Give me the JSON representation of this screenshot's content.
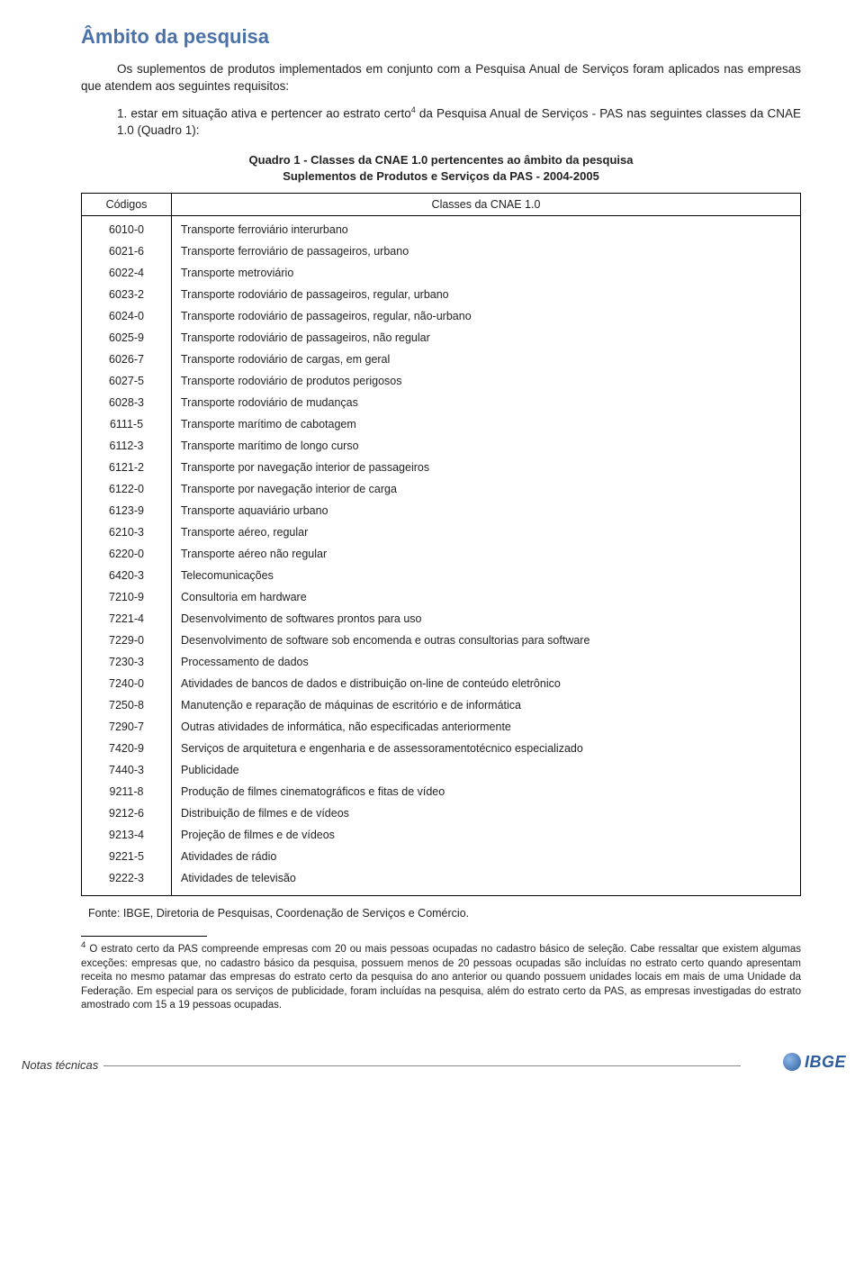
{
  "title": "Âmbito da pesquisa",
  "intro": "Os suplementos de produtos implementados em conjunto com a Pesquisa Anual de Serviços foram aplicados nas empresas que atendem aos seguintes requisitos:",
  "list_item_prefix": "1. estar em situação ativa e pertencer ao estrato certo",
  "list_item_sup": "4",
  "list_item_suffix": " da Pesquisa Anual de Serviços - PAS nas seguintes classes da CNAE 1.0 (Quadro 1):",
  "quadro_title_line1": "Quadro 1 - Classes da CNAE 1.0 pertencentes ao âmbito da pesquisa",
  "quadro_title_line2": "Suplementos de Produtos e Serviços da PAS - 2004-2005",
  "table": {
    "header_codes": "Códigos",
    "header_class": "Classes da CNAE 1.0",
    "rows": [
      {
        "code": "6010-0",
        "desc": "Transporte ferroviário interurbano"
      },
      {
        "code": "6021-6",
        "desc": "Transporte ferroviário de passageiros, urbano"
      },
      {
        "code": "6022-4",
        "desc": "Transporte metroviário"
      },
      {
        "code": "6023-2",
        "desc": "Transporte rodoviário de passageiros, regular, urbano"
      },
      {
        "code": "6024-0",
        "desc": "Transporte rodoviário de passageiros, regular, não-urbano"
      },
      {
        "code": "6025-9",
        "desc": "Transporte rodoviário de passageiros, não regular"
      },
      {
        "code": "6026-7",
        "desc": "Transporte rodoviário de cargas, em geral"
      },
      {
        "code": "6027-5",
        "desc": "Transporte rodoviário de produtos perigosos"
      },
      {
        "code": "6028-3",
        "desc": "Transporte rodoviário de mudanças"
      },
      {
        "code": "6111-5",
        "desc": "Transporte marítimo de cabotagem"
      },
      {
        "code": "6112-3",
        "desc": "Transporte marítimo de longo curso"
      },
      {
        "code": "6121-2",
        "desc": "Transporte por navegação interior de passageiros"
      },
      {
        "code": "6122-0",
        "desc": "Transporte por navegação interior de carga"
      },
      {
        "code": "6123-9",
        "desc": "Transporte aquaviário urbano"
      },
      {
        "code": "6210-3",
        "desc": "Transporte aéreo, regular"
      },
      {
        "code": "6220-0",
        "desc": "Transporte aéreo não regular"
      },
      {
        "code": "6420-3",
        "desc": "Telecomunicações"
      },
      {
        "code": "7210-9",
        "desc": "Consultoria em hardware"
      },
      {
        "code": "7221-4",
        "desc": "Desenvolvimento de softwares prontos para uso"
      },
      {
        "code": "7229-0",
        "desc": "Desenvolvimento de software sob encomenda e outras consultorias para software"
      },
      {
        "code": "7230-3",
        "desc": "Processamento de dados"
      },
      {
        "code": "7240-0",
        "desc": "Atividades de bancos de dados e distribuição on-line de conteúdo eletrônico"
      },
      {
        "code": "7250-8",
        "desc": "Manutenção e reparação de máquinas de escritório e de informática"
      },
      {
        "code": "7290-7",
        "desc": "Outras atividades de informática, não especificadas anteriormente"
      },
      {
        "code": "7420-9",
        "desc": "Serviços de arquitetura e engenharia e de assessoramentotécnico especializado"
      },
      {
        "code": "7440-3",
        "desc": "Publicidade"
      },
      {
        "code": "9211-8",
        "desc": "Produção de filmes cinematográficos e fitas de vídeo"
      },
      {
        "code": "9212-6",
        "desc": "Distribuição de filmes e de vídeos"
      },
      {
        "code": "9213-4",
        "desc": "Projeção de filmes e de vídeos"
      },
      {
        "code": "9221-5",
        "desc": "Atividades de rádio"
      },
      {
        "code": "9222-3",
        "desc": "Atividades de televisão"
      }
    ]
  },
  "fonte": "Fonte: IBGE, Diretoria de Pesquisas, Coordenação de  Serviços e Comércio.",
  "footnote_sup": "4",
  "footnote_text": " O estrato certo da PAS compreende empresas com 20 ou mais pessoas ocupadas no cadastro básico de seleção. Cabe ressaltar que existem algumas exceções: empresas que, no cadastro básico da pesquisa, possuem menos de 20 pessoas ocupadas são incluídas no estrato certo quando apresentam receita no mesmo patamar das empresas do estrato certo da pesquisa do ano anterior ou quando possuem unidades locais em mais de uma Unidade da Federação. Em especial para os serviços de publicidade, foram incluídas na pesquisa, além do estrato certo da PAS, as empresas investigadas do estrato amostrado com 15 a 19 pessoas ocupadas.",
  "footer_label": "Notas técnicas",
  "logo_text": "IBGE",
  "colors": {
    "title": "#4a72a8",
    "text": "#222222",
    "border": "#000000",
    "logo": "#2b5c9e"
  }
}
